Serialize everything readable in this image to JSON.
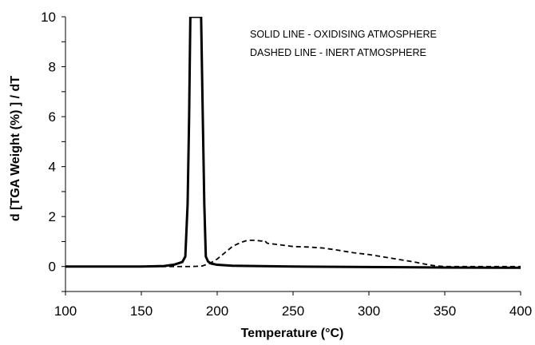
{
  "chart_data": {
    "type": "line",
    "title": "",
    "xlabel": "Temperature (°C)",
    "ylabel": "d [TGA Weight (%) ] / dT",
    "xlim": [
      100,
      400
    ],
    "ylim": [
      -1,
      10
    ],
    "x_ticks": [
      100,
      150,
      200,
      250,
      300,
      350,
      400
    ],
    "y_ticks": [
      0,
      2,
      4,
      6,
      8,
      10
    ],
    "grid": false,
    "annotations": [
      "SOLID LINE - OXIDISING ATMOSPHERE",
      "DASHED LINE - INERT ATMOSPHERE"
    ],
    "series": [
      {
        "style": "solid",
        "color": "#000000",
        "points": [
          [
            100,
            0
          ],
          [
            150,
            0
          ],
          [
            165,
            0.02
          ],
          [
            172,
            0.08
          ],
          [
            177,
            0.18
          ],
          [
            179,
            0.4
          ],
          [
            180.5,
            2.5
          ],
          [
            181.5,
            6
          ],
          [
            182.3,
            10
          ],
          [
            189.4,
            10
          ],
          [
            190.5,
            6
          ],
          [
            191.5,
            2.5
          ],
          [
            192.5,
            0.4
          ],
          [
            194,
            0.2
          ],
          [
            196,
            0.12
          ],
          [
            200,
            0.07
          ],
          [
            210,
            0.03
          ],
          [
            250,
            0.0
          ],
          [
            300,
            -0.02
          ],
          [
            350,
            -0.04
          ],
          [
            400,
            -0.05
          ]
        ]
      },
      {
        "style": "dashed",
        "color": "#000000",
        "points": [
          [
            100,
            0
          ],
          [
            170,
            0
          ],
          [
            183,
            0
          ],
          [
            190,
            0.02
          ],
          [
            195,
            0.12
          ],
          [
            200,
            0.3
          ],
          [
            205,
            0.55
          ],
          [
            210,
            0.8
          ],
          [
            215,
            0.95
          ],
          [
            220,
            1.05
          ],
          [
            225,
            1.05
          ],
          [
            229,
            1.02
          ],
          [
            231,
            1.05
          ],
          [
            233,
            0.93
          ],
          [
            240,
            0.88
          ],
          [
            250,
            0.8
          ],
          [
            260,
            0.78
          ],
          [
            270,
            0.74
          ],
          [
            280,
            0.65
          ],
          [
            290,
            0.55
          ],
          [
            300,
            0.48
          ],
          [
            310,
            0.38
          ],
          [
            320,
            0.28
          ],
          [
            330,
            0.18
          ],
          [
            340,
            0.06
          ],
          [
            345,
            0.02
          ],
          [
            350,
            0
          ],
          [
            400,
            0
          ]
        ]
      }
    ]
  }
}
